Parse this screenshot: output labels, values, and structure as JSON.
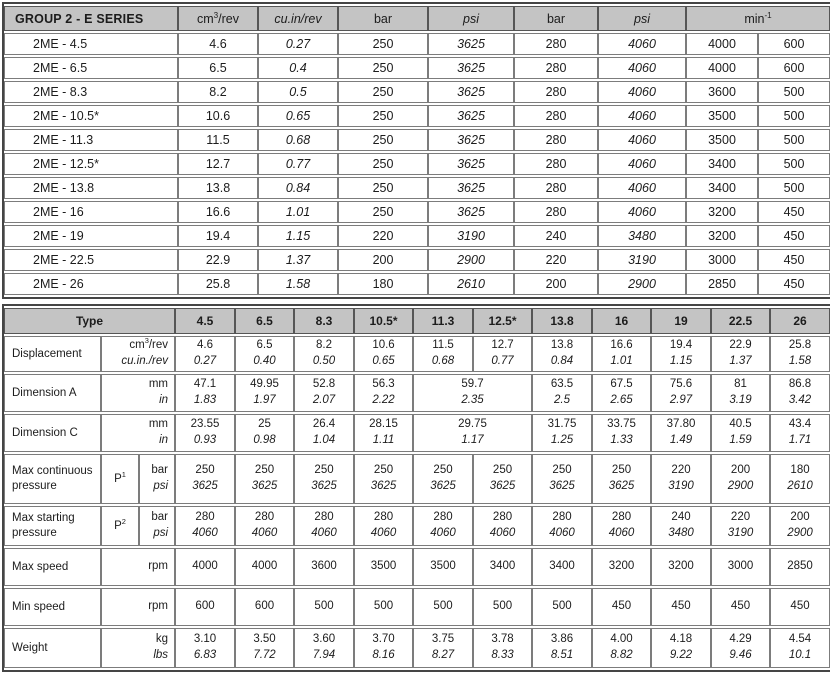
{
  "colors": {
    "header_bg": "#c4c4c4",
    "border_outer": "#454545",
    "border_inner": "#7c7c7c",
    "text": "#1c1c1c"
  },
  "table1": {
    "title": "GROUP 2 - E SERIES",
    "columns": [
      {
        "label": [
          {
            "t": "cm"
          },
          {
            "t": "3",
            "sup": true
          },
          {
            "t": "/rev"
          }
        ],
        "italic": false,
        "span": 1
      },
      {
        "label": [
          {
            "t": "cu.in/rev"
          }
        ],
        "italic": true,
        "span": 1
      },
      {
        "label": [
          {
            "t": "bar"
          }
        ],
        "italic": false,
        "span": 1
      },
      {
        "label": [
          {
            "t": "psi"
          }
        ],
        "italic": true,
        "span": 1
      },
      {
        "label": [
          {
            "t": "bar"
          }
        ],
        "italic": false,
        "span": 1
      },
      {
        "label": [
          {
            "t": "psi"
          }
        ],
        "italic": true,
        "span": 1
      },
      {
        "label": [
          {
            "t": "min"
          },
          {
            "t": "-1",
            "sup": true
          }
        ],
        "italic": false,
        "span": 2
      }
    ],
    "value_italics": [
      false,
      true,
      false,
      true,
      false,
      true,
      false,
      false
    ],
    "rows": [
      {
        "name": "2ME - 4.5",
        "values": [
          "4.6",
          "0.27",
          "250",
          "3625",
          "280",
          "4060",
          "4000",
          "600"
        ]
      },
      {
        "name": "2ME - 6.5",
        "values": [
          "6.5",
          "0.4",
          "250",
          "3625",
          "280",
          "4060",
          "4000",
          "600"
        ]
      },
      {
        "name": "2ME - 8.3",
        "values": [
          "8.2",
          "0.5",
          "250",
          "3625",
          "280",
          "4060",
          "3600",
          "500"
        ]
      },
      {
        "name": "2ME - 10.5*",
        "values": [
          "10.6",
          "0.65",
          "250",
          "3625",
          "280",
          "4060",
          "3500",
          "500"
        ]
      },
      {
        "name": "2ME - 11.3",
        "values": [
          "11.5",
          "0.68",
          "250",
          "3625",
          "280",
          "4060",
          "3500",
          "500"
        ]
      },
      {
        "name": "2ME - 12.5*",
        "values": [
          "12.7",
          "0.77",
          "250",
          "3625",
          "280",
          "4060",
          "3400",
          "500"
        ]
      },
      {
        "name": "2ME - 13.8",
        "values": [
          "13.8",
          "0.84",
          "250",
          "3625",
          "280",
          "4060",
          "3400",
          "500"
        ]
      },
      {
        "name": "2ME - 16",
        "values": [
          "16.6",
          "1.01",
          "250",
          "3625",
          "280",
          "4060",
          "3200",
          "450"
        ]
      },
      {
        "name": "2ME - 19",
        "values": [
          "19.4",
          "1.15",
          "220",
          "3190",
          "240",
          "3480",
          "3200",
          "450"
        ]
      },
      {
        "name": "2ME - 22.5",
        "values": [
          "22.9",
          "1.37",
          "200",
          "2900",
          "220",
          "3190",
          "3000",
          "450"
        ]
      },
      {
        "name": "2ME - 26",
        "values": [
          "25.8",
          "1.58",
          "180",
          "2610",
          "200",
          "2900",
          "2850",
          "450"
        ]
      }
    ]
  },
  "table2": {
    "corner_label": "Type",
    "types": [
      "4.5",
      "6.5",
      "8.3",
      "10.5*",
      "11.3",
      "12.5*",
      "13.8",
      "16",
      "19",
      "22.5",
      "26"
    ],
    "rows": [
      {
        "label": "Displacement",
        "units": [
          {
            "parts": [
              {
                "t": "cm"
              },
              {
                "t": "3",
                "sup": true
              },
              {
                "t": "/rev"
              }
            ],
            "italic": false
          },
          {
            "parts": [
              {
                "t": "cu.in./rev"
              }
            ],
            "italic": true
          }
        ],
        "cells": [
          {
            "lines": [
              "4.6",
              "0.27"
            ]
          },
          {
            "lines": [
              "6.5",
              "0.40"
            ]
          },
          {
            "lines": [
              "8.2",
              "0.50"
            ]
          },
          {
            "lines": [
              "10.6",
              "0.65"
            ]
          },
          {
            "lines": [
              "11.5",
              "0.68"
            ]
          },
          {
            "lines": [
              "12.7",
              "0.77"
            ]
          },
          {
            "lines": [
              "13.8",
              "0.84"
            ]
          },
          {
            "lines": [
              "16.6",
              "1.01"
            ]
          },
          {
            "lines": [
              "19.4",
              "1.15"
            ]
          },
          {
            "lines": [
              "22.9",
              "1.37"
            ]
          },
          {
            "lines": [
              "25.8",
              "1.58"
            ]
          }
        ]
      },
      {
        "label": "Dimension A",
        "units": [
          {
            "parts": [
              {
                "t": "mm"
              }
            ],
            "italic": false
          },
          {
            "parts": [
              {
                "t": "in"
              }
            ],
            "italic": true
          }
        ],
        "cells": [
          {
            "lines": [
              "47.1",
              "1.83"
            ]
          },
          {
            "lines": [
              "49.95",
              "1.97"
            ]
          },
          {
            "lines": [
              "52.8",
              "2.07"
            ]
          },
          {
            "lines": [
              "56.3",
              "2.22"
            ]
          },
          {
            "lines": [
              "59.7",
              "2.35"
            ],
            "span": 2
          },
          {
            "lines": [
              "63.5",
              "2.5"
            ]
          },
          {
            "lines": [
              "67.5",
              "2.65"
            ]
          },
          {
            "lines": [
              "75.6",
              "2.97"
            ]
          },
          {
            "lines": [
              "81",
              "3.19"
            ]
          },
          {
            "lines": [
              "86.8",
              "3.42"
            ]
          }
        ]
      },
      {
        "label": "Dimension C",
        "units": [
          {
            "parts": [
              {
                "t": "mm"
              }
            ],
            "italic": false
          },
          {
            "parts": [
              {
                "t": "in"
              }
            ],
            "italic": true
          }
        ],
        "cells": [
          {
            "lines": [
              "23.55",
              "0.93"
            ]
          },
          {
            "lines": [
              "25",
              "0.98"
            ]
          },
          {
            "lines": [
              "26.4",
              "1.04"
            ]
          },
          {
            "lines": [
              "28.15",
              "1.11"
            ]
          },
          {
            "lines": [
              "29.75",
              "1.17"
            ],
            "span": 2
          },
          {
            "lines": [
              "31.75",
              "1.25"
            ]
          },
          {
            "lines": [
              "33.75",
              "1.33"
            ]
          },
          {
            "lines": [
              "37.80",
              "1.49"
            ]
          },
          {
            "lines": [
              "40.5",
              "1.59"
            ]
          },
          {
            "lines": [
              "43.4",
              "1.71"
            ]
          }
        ]
      },
      {
        "label": "Max continuous pressure",
        "p": [
          {
            "t": "P"
          },
          {
            "t": "1",
            "sup": true
          }
        ],
        "units": [
          {
            "parts": [
              {
                "t": "bar"
              }
            ],
            "italic": false
          },
          {
            "parts": [
              {
                "t": "psi"
              }
            ],
            "italic": true
          }
        ],
        "cells": [
          {
            "lines": [
              "250",
              "3625"
            ]
          },
          {
            "lines": [
              "250",
              "3625"
            ]
          },
          {
            "lines": [
              "250",
              "3625"
            ]
          },
          {
            "lines": [
              "250",
              "3625"
            ]
          },
          {
            "lines": [
              "250",
              "3625"
            ]
          },
          {
            "lines": [
              "250",
              "3625"
            ]
          },
          {
            "lines": [
              "250",
              "3625"
            ]
          },
          {
            "lines": [
              "250",
              "3625"
            ]
          },
          {
            "lines": [
              "220",
              "3190"
            ]
          },
          {
            "lines": [
              "200",
              "2900"
            ]
          },
          {
            "lines": [
              "180",
              "2610"
            ]
          }
        ]
      },
      {
        "label": "Max starting pressure",
        "p": [
          {
            "t": "P"
          },
          {
            "t": "2",
            "sup": true
          }
        ],
        "units": [
          {
            "parts": [
              {
                "t": "bar"
              }
            ],
            "italic": false
          },
          {
            "parts": [
              {
                "t": "psi"
              }
            ],
            "italic": true
          }
        ],
        "cells": [
          {
            "lines": [
              "280",
              "4060"
            ]
          },
          {
            "lines": [
              "280",
              "4060"
            ]
          },
          {
            "lines": [
              "280",
              "4060"
            ]
          },
          {
            "lines": [
              "280",
              "4060"
            ]
          },
          {
            "lines": [
              "280",
              "4060"
            ]
          },
          {
            "lines": [
              "280",
              "4060"
            ]
          },
          {
            "lines": [
              "280",
              "4060"
            ]
          },
          {
            "lines": [
              "280",
              "4060"
            ]
          },
          {
            "lines": [
              "240",
              "3480"
            ]
          },
          {
            "lines": [
              "220",
              "3190"
            ]
          },
          {
            "lines": [
              "200",
              "2900"
            ]
          }
        ]
      },
      {
        "label": "Max speed",
        "units": [
          {
            "parts": [
              {
                "t": "rpm"
              }
            ],
            "italic": false
          }
        ],
        "cells": [
          {
            "lines": [
              "4000"
            ]
          },
          {
            "lines": [
              "4000"
            ]
          },
          {
            "lines": [
              "3600"
            ]
          },
          {
            "lines": [
              "3500"
            ]
          },
          {
            "lines": [
              "3500"
            ]
          },
          {
            "lines": [
              "3400"
            ]
          },
          {
            "lines": [
              "3400"
            ]
          },
          {
            "lines": [
              "3200"
            ]
          },
          {
            "lines": [
              "3200"
            ]
          },
          {
            "lines": [
              "3000"
            ]
          },
          {
            "lines": [
              "2850"
            ]
          }
        ]
      },
      {
        "label": "Min speed",
        "units": [
          {
            "parts": [
              {
                "t": "rpm"
              }
            ],
            "italic": false
          }
        ],
        "cells": [
          {
            "lines": [
              "600"
            ]
          },
          {
            "lines": [
              "600"
            ]
          },
          {
            "lines": [
              "500"
            ]
          },
          {
            "lines": [
              "500"
            ]
          },
          {
            "lines": [
              "500"
            ]
          },
          {
            "lines": [
              "500"
            ]
          },
          {
            "lines": [
              "500"
            ]
          },
          {
            "lines": [
              "450"
            ]
          },
          {
            "lines": [
              "450"
            ]
          },
          {
            "lines": [
              "450"
            ]
          },
          {
            "lines": [
              "450"
            ]
          }
        ]
      },
      {
        "label": "Weight",
        "units": [
          {
            "parts": [
              {
                "t": "kg"
              }
            ],
            "italic": false
          },
          {
            "parts": [
              {
                "t": "lbs"
              }
            ],
            "italic": true
          }
        ],
        "cells": [
          {
            "lines": [
              "3.10",
              "6.83"
            ]
          },
          {
            "lines": [
              "3.50",
              "7.72"
            ]
          },
          {
            "lines": [
              "3.60",
              "7.94"
            ]
          },
          {
            "lines": [
              "3.70",
              "8.16"
            ]
          },
          {
            "lines": [
              "3.75",
              "8.27"
            ]
          },
          {
            "lines": [
              "3.78",
              "8.33"
            ]
          },
          {
            "lines": [
              "3.86",
              "8.51"
            ]
          },
          {
            "lines": [
              "4.00",
              "8.82"
            ]
          },
          {
            "lines": [
              "4.18",
              "9.22"
            ]
          },
          {
            "lines": [
              "4.29",
              "9.46"
            ]
          },
          {
            "lines": [
              "4.54",
              "10.1"
            ]
          }
        ]
      }
    ]
  }
}
